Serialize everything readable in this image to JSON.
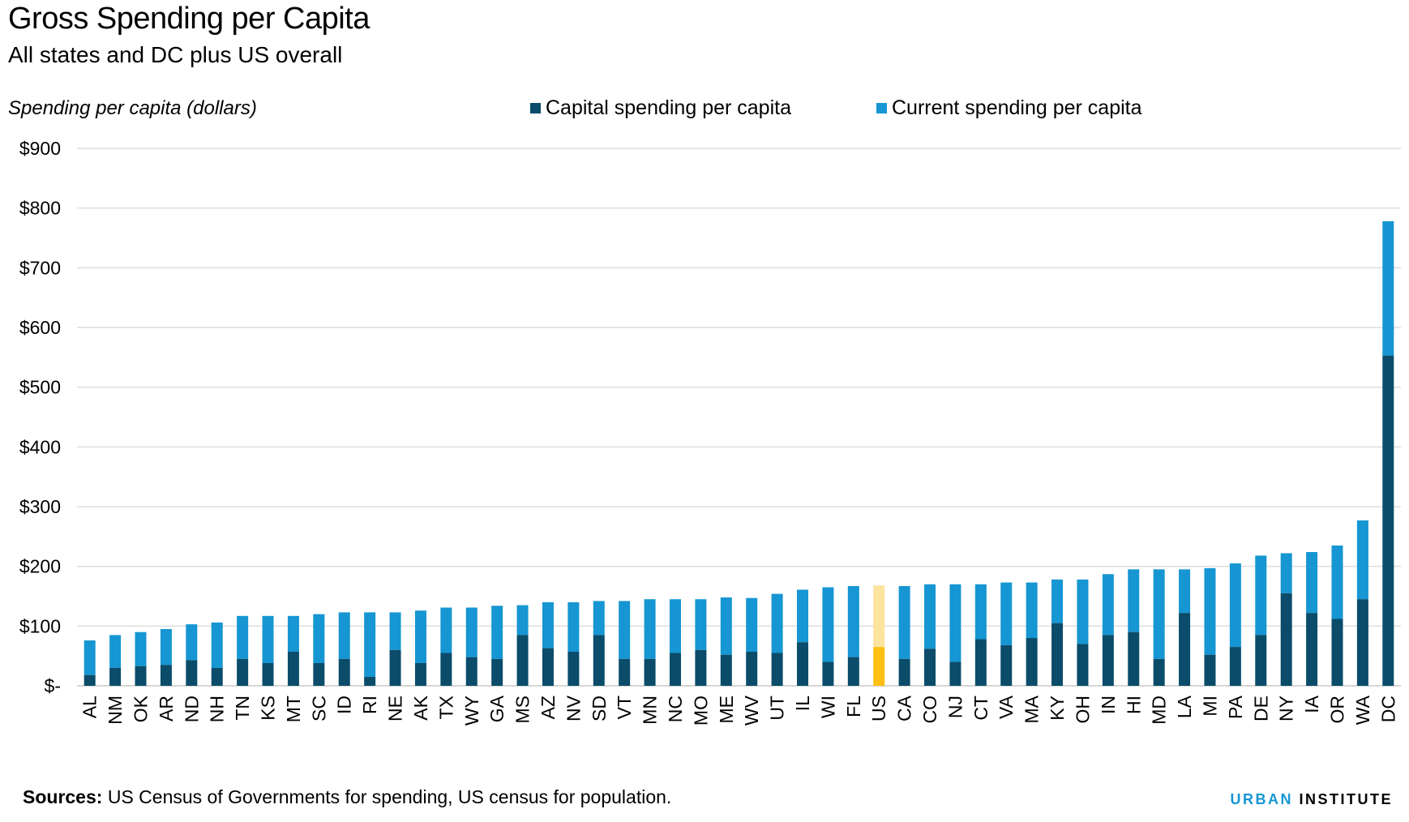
{
  "header": {
    "title": "Gross Spending per Capita",
    "subtitle": "All states and DC plus US overall"
  },
  "footer": {
    "source_label": "Sources:",
    "source_text": " US Census of Governments for spending, US census for population.",
    "brand_part1": "URBAN",
    "brand_part2": "INSTITUTE"
  },
  "colors": {
    "capital": "#0a4c6a",
    "current": "#1696d2",
    "us_capital": "#fdbf11",
    "us_current": "#fce39e",
    "grid": "#dedede"
  },
  "chart_data": {
    "type": "bar",
    "stacked": true,
    "ylabel": "Spending per capita (dollars)",
    "ylim": [
      0,
      900
    ],
    "yticks": [
      0,
      100,
      200,
      300,
      400,
      500,
      600,
      700,
      800,
      900
    ],
    "ytick_labels": [
      "$-",
      "$100",
      "$200",
      "$300",
      "$400",
      "$500",
      "$600",
      "$700",
      "$800",
      "$900"
    ],
    "grid": true,
    "legend_position": "top-center",
    "highlight_category": "US",
    "categories": [
      "AL",
      "NM",
      "OK",
      "AR",
      "ND",
      "NH",
      "TN",
      "KS",
      "MT",
      "SC",
      "ID",
      "RI",
      "NE",
      "AK",
      "TX",
      "WY",
      "GA",
      "MS",
      "AZ",
      "NV",
      "SD",
      "VT",
      "MN",
      "NC",
      "MO",
      "ME",
      "WV",
      "UT",
      "IL",
      "WI",
      "FL",
      "US",
      "CA",
      "CO",
      "NJ",
      "CT",
      "VA",
      "MA",
      "KY",
      "OH",
      "IN",
      "HI",
      "MD",
      "LA",
      "MI",
      "PA",
      "DE",
      "NY",
      "IA",
      "OR",
      "WA",
      "DC"
    ],
    "series": [
      {
        "name": "Capital spending per capita",
        "values": [
          18,
          30,
          33,
          35,
          43,
          30,
          45,
          38,
          57,
          38,
          45,
          15,
          60,
          38,
          55,
          48,
          45,
          85,
          63,
          57,
          85,
          45,
          45,
          55,
          60,
          52,
          57,
          55,
          73,
          40,
          48,
          65,
          45,
          62,
          40,
          78,
          68,
          80,
          105,
          70,
          85,
          90,
          45,
          122,
          52,
          65,
          85,
          155,
          122,
          112,
          145,
          553
        ]
      },
      {
        "name": "Current spending per capita",
        "values": [
          58,
          55,
          57,
          60,
          60,
          76,
          72,
          79,
          60,
          82,
          78,
          108,
          63,
          88,
          76,
          83,
          89,
          50,
          77,
          83,
          57,
          97,
          100,
          90,
          85,
          96,
          90,
          99,
          88,
          125,
          119,
          103,
          122,
          108,
          130,
          92,
          105,
          93,
          73,
          108,
          102,
          105,
          150,
          73,
          145,
          140,
          133,
          67,
          102,
          123,
          132,
          225
        ]
      }
    ]
  }
}
